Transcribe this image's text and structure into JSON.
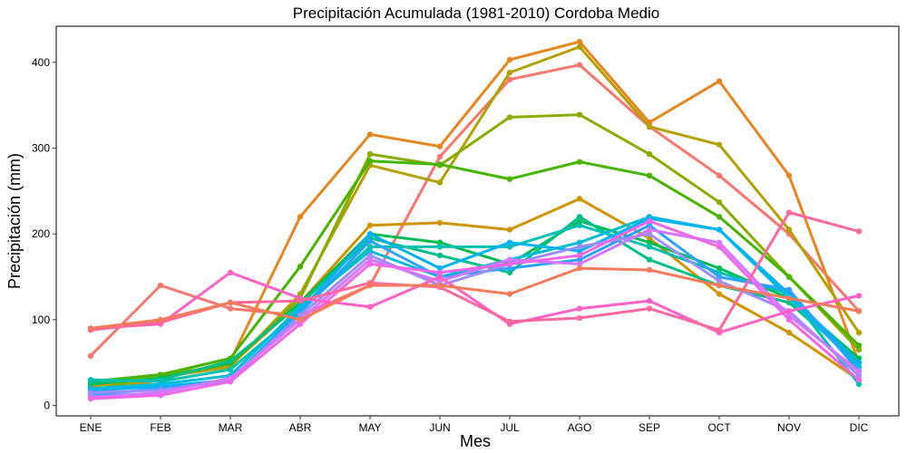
{
  "chart_data": {
    "type": "line",
    "title": "Precipitación Acumulada (1981-2010)  Cordoba Medio",
    "xlabel": "Mes",
    "ylabel": "Precipitación  (mm)",
    "categories": [
      "ENE",
      "FEB",
      "MAR",
      "ABR",
      "MAY",
      "JUN",
      "JUL",
      "AGO",
      "SEP",
      "OCT",
      "NOV",
      "DIC"
    ],
    "yticks": [
      0,
      100,
      200,
      300,
      400
    ],
    "ylim": [
      -12,
      442
    ],
    "grid": false,
    "legend": "none",
    "series": [
      {
        "color": "#F8766D",
        "values": [
          58,
          140,
          113,
          105,
          140,
          290,
          380,
          397,
          325,
          268,
          200,
          110
        ]
      },
      {
        "color": "#E7851E",
        "values": [
          13,
          30,
          52,
          220,
          316,
          302,
          403,
          424,
          330,
          378,
          268,
          50
        ]
      },
      {
        "color": "#D09400",
        "values": [
          22,
          36,
          47,
          120,
          210,
          213,
          205,
          241,
          195,
          130,
          85,
          30
        ]
      },
      {
        "color": "#B2A100",
        "values": [
          15,
          33,
          45,
          130,
          280,
          260,
          388,
          418,
          325,
          304,
          205,
          85
        ]
      },
      {
        "color": "#89AC00",
        "values": [
          18,
          35,
          48,
          125,
          293,
          280,
          336,
          339,
          293,
          237,
          150,
          65
        ]
      },
      {
        "color": "#45B500",
        "values": [
          28,
          36,
          55,
          162,
          285,
          281,
          264,
          284,
          268,
          220,
          150,
          70
        ]
      },
      {
        "color": "#00BC51",
        "values": [
          25,
          32,
          50,
          120,
          200,
          190,
          165,
          215,
          190,
          160,
          125,
          55
        ]
      },
      {
        "color": "#00C087",
        "values": [
          28,
          30,
          52,
          118,
          195,
          175,
          155,
          220,
          170,
          140,
          120,
          50
        ]
      },
      {
        "color": "#00C0B2",
        "values": [
          30,
          28,
          42,
          110,
          185,
          185,
          185,
          210,
          185,
          155,
          130,
          25
        ]
      },
      {
        "color": "#00BCD6",
        "values": [
          20,
          25,
          35,
          115,
          180,
          150,
          170,
          190,
          220,
          205,
          125,
          45
        ]
      },
      {
        "color": "#00B3F2",
        "values": [
          18,
          22,
          30,
          110,
          200,
          160,
          190,
          180,
          218,
          205,
          130,
          50
        ]
      },
      {
        "color": "#29A3FF",
        "values": [
          12,
          20,
          28,
          108,
          192,
          150,
          160,
          170,
          210,
          150,
          135,
          40
        ]
      },
      {
        "color": "#9C8DFF",
        "values": [
          15,
          18,
          30,
          105,
          175,
          140,
          165,
          185,
          200,
          145,
          110,
          35
        ]
      },
      {
        "color": "#D277FF",
        "values": [
          10,
          15,
          32,
          100,
          170,
          145,
          170,
          165,
          205,
          190,
          105,
          40
        ]
      },
      {
        "color": "#F166E8",
        "values": [
          8,
          12,
          28,
          95,
          165,
          155,
          165,
          175,
          215,
          185,
          100,
          30
        ]
      },
      {
        "color": "#FF61C7",
        "values": [
          90,
          95,
          155,
          125,
          115,
          150,
          95,
          113,
          122,
          85,
          110,
          128
        ]
      },
      {
        "color": "#FF689E",
        "values": [
          88,
          97,
          120,
          122,
          143,
          138,
          98,
          102,
          113,
          88,
          225,
          203
        ]
      },
      {
        "color": "#F37B59",
        "values": [
          90,
          100,
          120,
          100,
          140,
          140,
          130,
          160,
          158,
          140,
          125,
          110
        ]
      }
    ]
  }
}
